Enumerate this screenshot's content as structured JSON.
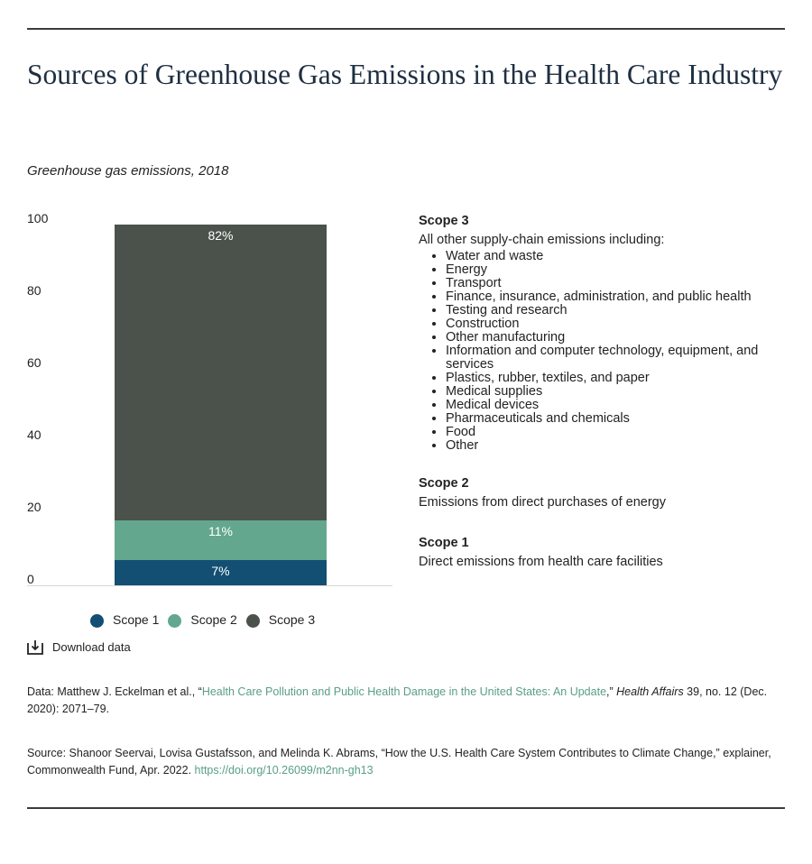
{
  "title": "Sources of Greenhouse Gas Emissions in the Health Care Industry",
  "subtitle": "Greenhouse gas emissions, 2018",
  "chart_data": {
    "type": "bar",
    "stacked": true,
    "categories": [
      ""
    ],
    "series": [
      {
        "name": "Scope 1",
        "values": [
          7
        ],
        "label": "7%",
        "color": "#134f72"
      },
      {
        "name": "Scope 2",
        "values": [
          11
        ],
        "label": "11%",
        "color": "#63a78f"
      },
      {
        "name": "Scope 3",
        "values": [
          82
        ],
        "label": "82%",
        "color": "#4b524b"
      }
    ],
    "ylim": [
      0,
      100
    ],
    "yticks": [
      "0",
      "20",
      "40",
      "60",
      "80",
      "100"
    ],
    "grid": false,
    "legend": "bottom"
  },
  "scopes": {
    "scope3": {
      "title": "Scope 3",
      "desc": "All other supply-chain emissions including:",
      "items": [
        "Water and waste",
        "Energy",
        "Transport",
        "Finance, insurance, administration, and public health",
        "Testing and research",
        "Construction",
        "Other manufacturing",
        "Information and computer technology, equipment, and services",
        "Plastics, rubber, textiles, and paper",
        "Medical supplies",
        "Medical devices",
        "Pharmaceuticals and chemicals",
        "Food",
        "Other"
      ]
    },
    "scope2": {
      "title": "Scope 2",
      "desc": "Emissions from direct purchases of energy"
    },
    "scope1": {
      "title": "Scope 1",
      "desc": "Direct emissions from health care facilities"
    }
  },
  "download_label": "Download data",
  "data_note": {
    "prefix": "Data: Matthew J. Eckelman et al., “",
    "link_text": "Health Care Pollution and Public Health Damage in the United States: An Update",
    "mid": ",” ",
    "journal": "Health Affairs",
    "suffix": " 39, no. 12 (Dec. 2020): 2071–79."
  },
  "source_note": {
    "text": "Source: Shanoor Seervai, Lovisa Gustafsson, and Melinda K. Abrams, “How the U.S. Health Care System Contributes to Climate Change,” explainer, Commonwealth Fund, Apr. 2022. ",
    "link_text": "https://doi.org/10.26099/m2nn-gh13"
  }
}
